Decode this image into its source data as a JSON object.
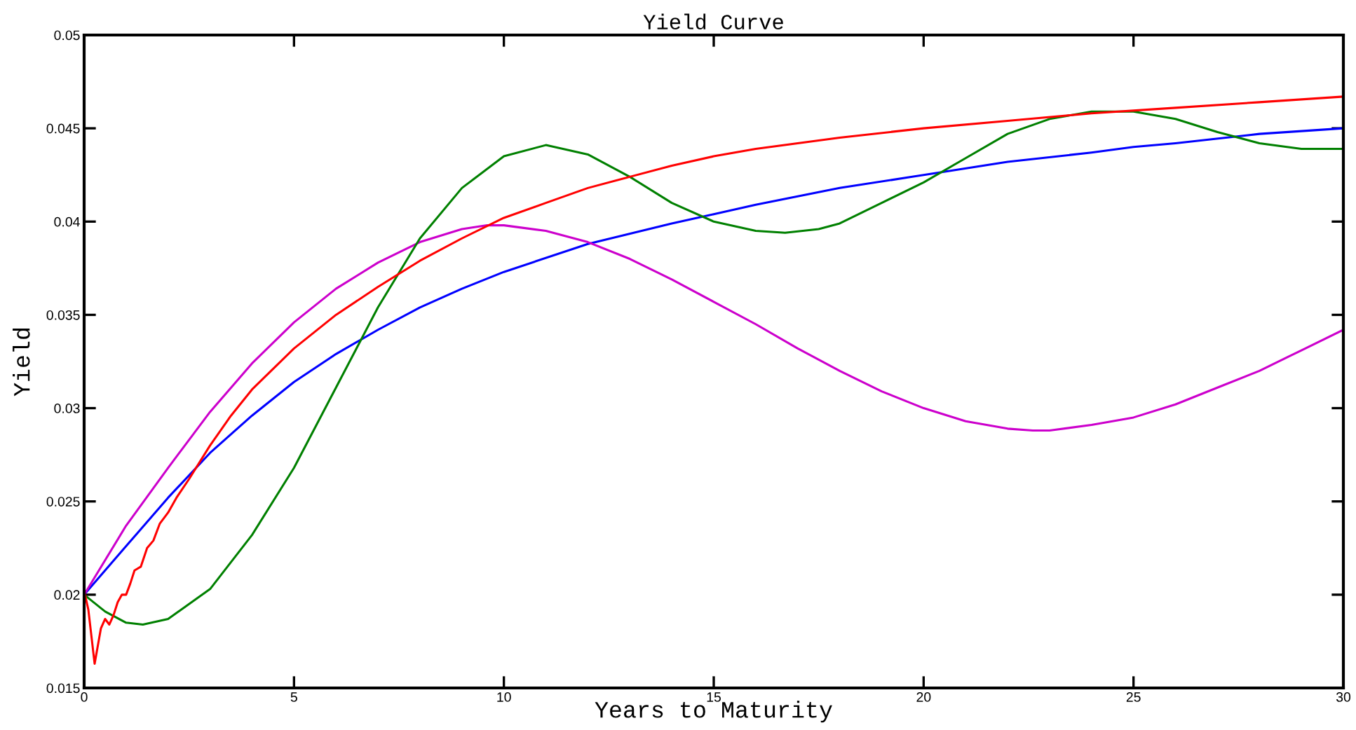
{
  "chart_data": {
    "type": "line",
    "title": "Yield Curve",
    "xlabel": "Years to Maturity",
    "ylabel": "Yield",
    "xlim": [
      0,
      30
    ],
    "xticks": [
      0,
      5,
      10,
      15,
      20,
      25,
      30
    ],
    "ylim": [
      0.015,
      0.05
    ],
    "yticks": [
      0.015,
      0.02,
      0.025,
      0.03,
      0.035,
      0.04,
      0.045,
      0.05
    ],
    "grid": false,
    "legend": false,
    "series": [
      {
        "color": "#0000ff",
        "x": [
          0,
          1,
          2,
          3,
          4,
          5,
          6,
          7,
          8,
          9,
          10,
          12,
          14,
          15,
          16,
          18,
          20,
          22,
          24,
          25,
          26,
          28,
          30
        ],
        "values": [
          0.02,
          0.0226,
          0.0252,
          0.0276,
          0.0296,
          0.0314,
          0.0329,
          0.0342,
          0.0354,
          0.0364,
          0.0373,
          0.0388,
          0.0399,
          0.0404,
          0.0409,
          0.0418,
          0.0425,
          0.0432,
          0.0437,
          0.044,
          0.0442,
          0.0447,
          0.045
        ]
      },
      {
        "color": "#cc00cc",
        "x": [
          0,
          1,
          2,
          3,
          4,
          5,
          6,
          7,
          8,
          9,
          9.6,
          10,
          11,
          12,
          13,
          14,
          15,
          16,
          17,
          18,
          19,
          20,
          21,
          22,
          22.6,
          23,
          24,
          25,
          26,
          27,
          28,
          29,
          30
        ],
        "values": [
          0.02,
          0.0237,
          0.0268,
          0.0298,
          0.0324,
          0.0346,
          0.0364,
          0.0378,
          0.0389,
          0.0396,
          0.0398,
          0.0398,
          0.0395,
          0.0389,
          0.038,
          0.0369,
          0.0357,
          0.0345,
          0.0332,
          0.032,
          0.0309,
          0.03,
          0.0293,
          0.0289,
          0.0288,
          0.0288,
          0.0291,
          0.0295,
          0.0302,
          0.0311,
          0.032,
          0.0331,
          0.0342
        ]
      },
      {
        "color": "#008000",
        "x": [
          0,
          0.5,
          1,
          1.4,
          2,
          3,
          4,
          5,
          6,
          7,
          8,
          9,
          10,
          11,
          12,
          13,
          14,
          15,
          16,
          16.7,
          17.5,
          18,
          19,
          20,
          21,
          22,
          23,
          24,
          25,
          26,
          27,
          28,
          29,
          30
        ],
        "values": [
          0.02,
          0.0191,
          0.0185,
          0.0184,
          0.0187,
          0.0203,
          0.0232,
          0.0268,
          0.0311,
          0.0354,
          0.0391,
          0.0418,
          0.0435,
          0.0441,
          0.0436,
          0.0424,
          0.041,
          0.04,
          0.0395,
          0.0394,
          0.0396,
          0.0399,
          0.041,
          0.0421,
          0.0434,
          0.0447,
          0.0455,
          0.0459,
          0.0459,
          0.0455,
          0.0448,
          0.0442,
          0.0439,
          0.0439
        ]
      },
      {
        "color": "#ff0000",
        "x": [
          0,
          0.1,
          0.25,
          0.4,
          0.5,
          0.6,
          0.7,
          0.8,
          0.9,
          1.0,
          1.1,
          1.2,
          1.35,
          1.5,
          1.65,
          1.8,
          2.0,
          2.2,
          2.5,
          3,
          3.5,
          4,
          5,
          6,
          7,
          8,
          9,
          10,
          11,
          12,
          13,
          14,
          15,
          16,
          18,
          20,
          22,
          24,
          26,
          28,
          30
        ],
        "values": [
          0.0202,
          0.0192,
          0.0163,
          0.0182,
          0.0187,
          0.0184,
          0.0189,
          0.0196,
          0.02,
          0.02,
          0.0206,
          0.0213,
          0.0215,
          0.0225,
          0.0229,
          0.0238,
          0.0244,
          0.0252,
          0.0262,
          0.028,
          0.0296,
          0.031,
          0.0332,
          0.035,
          0.0365,
          0.0379,
          0.0391,
          0.0402,
          0.041,
          0.0418,
          0.0424,
          0.043,
          0.0435,
          0.0439,
          0.0445,
          0.045,
          0.0454,
          0.0458,
          0.0461,
          0.0464,
          0.0467
        ]
      }
    ]
  }
}
